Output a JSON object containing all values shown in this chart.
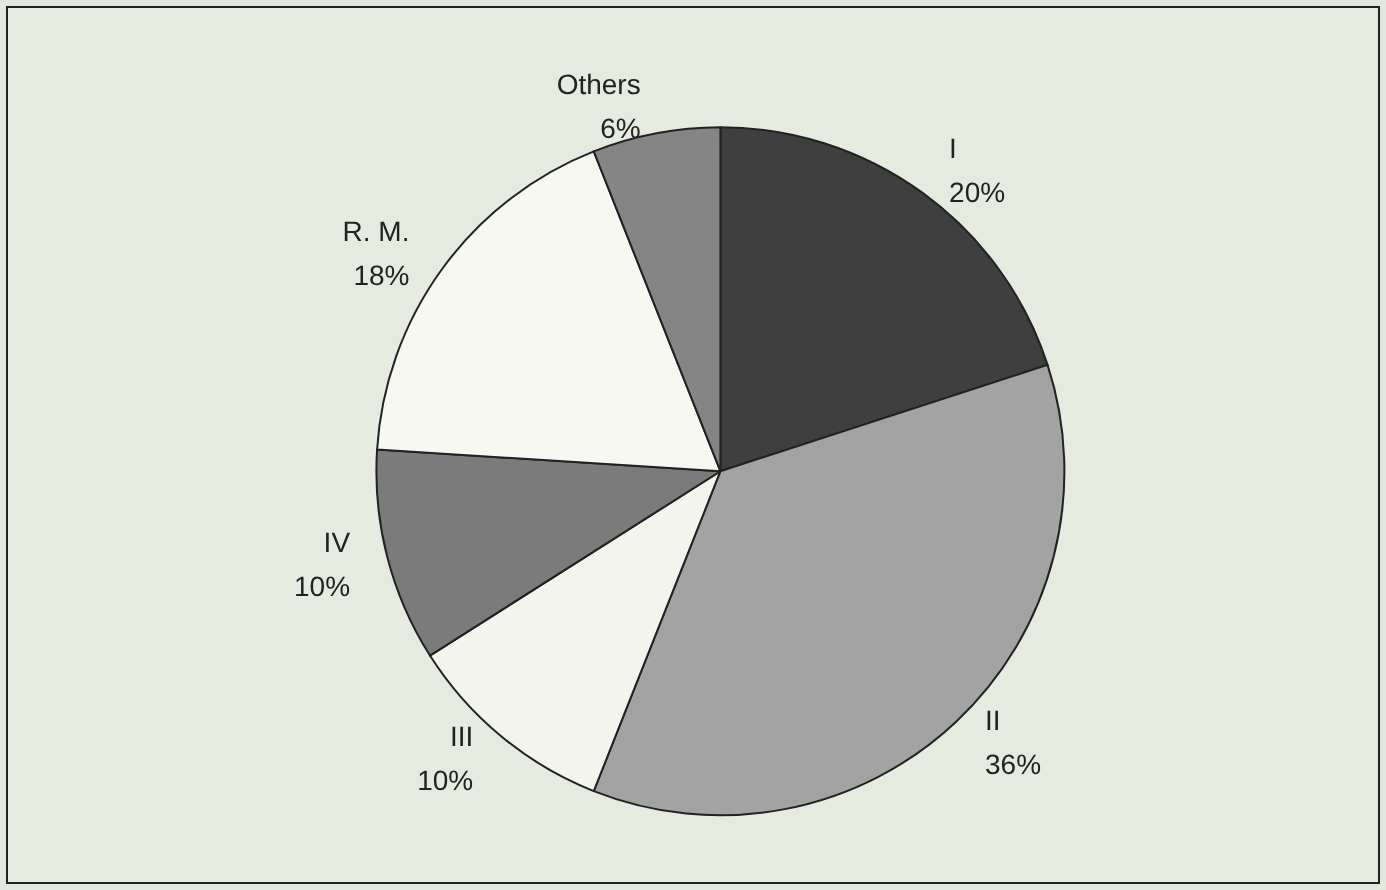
{
  "chart_data": {
    "type": "pie",
    "categories": [
      "I",
      "II",
      "III",
      "IV",
      "R. M.",
      "Others"
    ],
    "values": [
      20,
      36,
      10,
      10,
      18,
      6
    ],
    "colors": [
      "#3f3f3f",
      "#a3a3a3",
      "#f4f4ee",
      "#7b7b7b",
      "#f8f8f2",
      "#858585"
    ],
    "value_labels": [
      "20%",
      "36%",
      "10%",
      "10%",
      "18%",
      "6%"
    ],
    "legend": false
  }
}
